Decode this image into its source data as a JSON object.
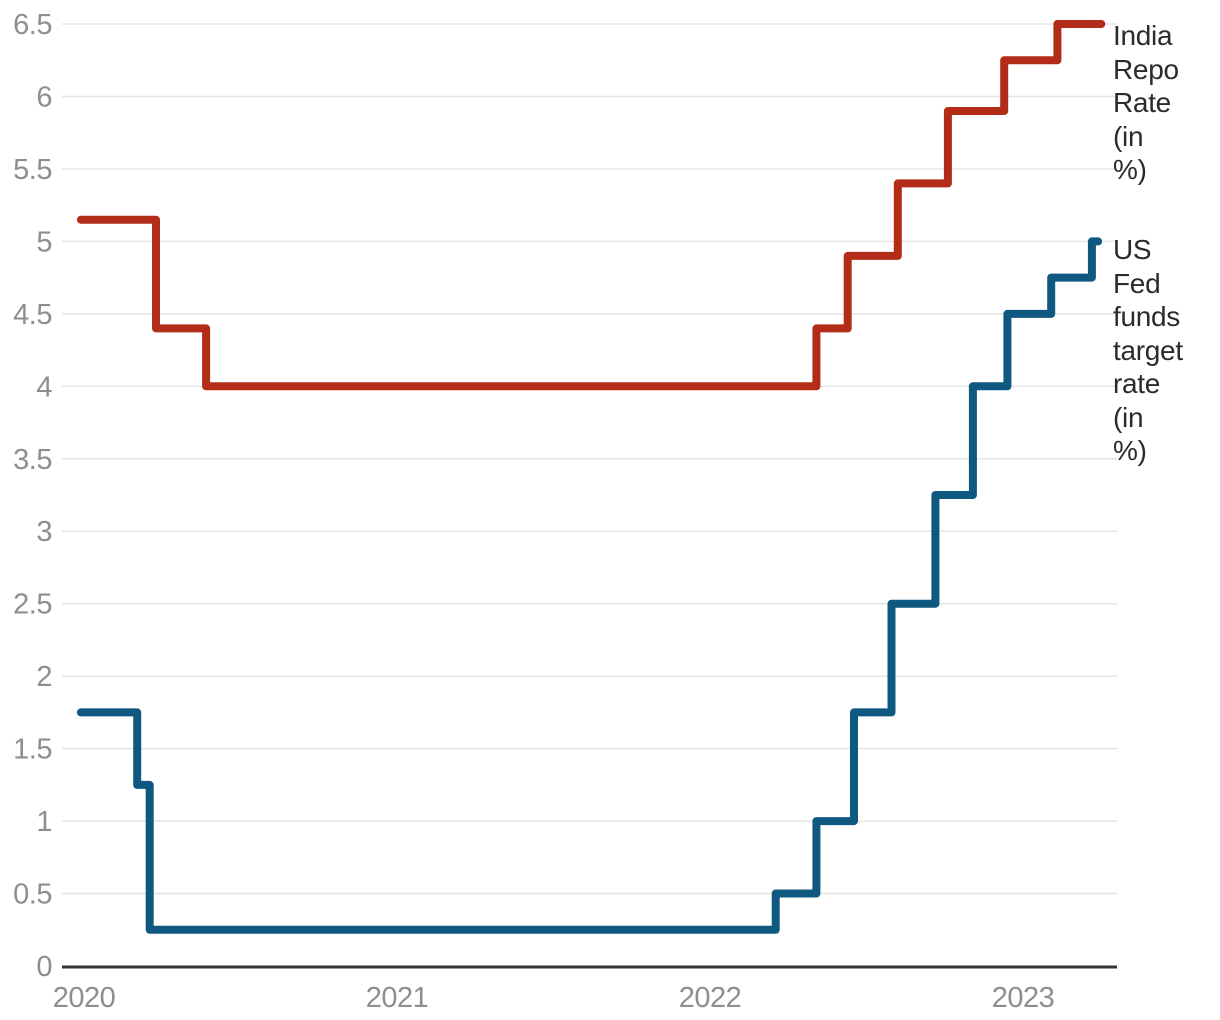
{
  "colors": {
    "background": "#ffffff",
    "india_line": "#b22c18",
    "us_line": "#0f5880",
    "grid_line": "#e5e5e5",
    "axis_line": "#333333",
    "tick_text": "#8e8e8e",
    "legend_text": "#2b2b2b"
  },
  "legend": {
    "india": "India Repo Rate (in %)",
    "us": "US Fed funds target rate (in %)"
  },
  "chart_data": {
    "type": "line",
    "step": "after",
    "title": "",
    "xlabel": "",
    "ylabel": "",
    "x_unit": "decimal years",
    "xlim": [
      2019.98,
      2023.32
    ],
    "ylim": [
      0,
      6.5
    ],
    "grid": true,
    "legend_position": "right",
    "x_ticks": [
      2020,
      2021,
      2022,
      2023
    ],
    "y_ticks": [
      0,
      0.5,
      1,
      1.5,
      2,
      2.5,
      3,
      3.5,
      4,
      4.5,
      5,
      5.5,
      6,
      6.5
    ],
    "series": [
      {
        "name": "India Repo Rate (in %)",
        "color": "#b22c18",
        "points": [
          [
            2019.99,
            5.15
          ],
          [
            2020.23,
            4.4
          ],
          [
            2020.39,
            4.0
          ],
          [
            2022.34,
            4.4
          ],
          [
            2022.44,
            4.9
          ],
          [
            2022.6,
            5.4
          ],
          [
            2022.76,
            5.9
          ],
          [
            2022.94,
            6.25
          ],
          [
            2023.11,
            6.5
          ],
          [
            2023.25,
            6.5
          ]
        ]
      },
      {
        "name": "US Fed funds target rate (in %)",
        "color": "#0f5880",
        "points": [
          [
            2019.99,
            1.75
          ],
          [
            2020.17,
            1.25
          ],
          [
            2020.21,
            0.25
          ],
          [
            2022.21,
            0.5
          ],
          [
            2022.34,
            1.0
          ],
          [
            2022.46,
            1.75
          ],
          [
            2022.58,
            2.5
          ],
          [
            2022.72,
            3.25
          ],
          [
            2022.84,
            4.0
          ],
          [
            2022.95,
            4.5
          ],
          [
            2023.09,
            4.75
          ],
          [
            2023.22,
            5.0
          ],
          [
            2023.24,
            5.0
          ]
        ]
      }
    ]
  }
}
